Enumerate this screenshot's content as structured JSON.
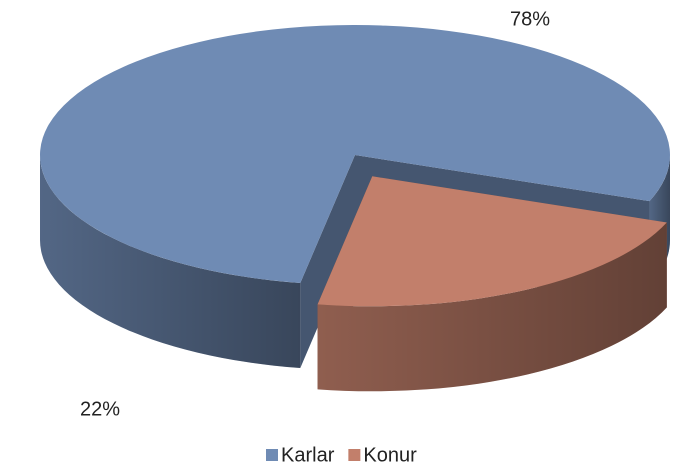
{
  "chart_data": {
    "type": "pie",
    "categories": [
      "Karlar",
      "Konur"
    ],
    "values": [
      78,
      22
    ],
    "value_labels": [
      "78%",
      "22%"
    ],
    "colors": [
      "#6f8bb4",
      "#c27f6b"
    ],
    "legend": "bottom"
  }
}
